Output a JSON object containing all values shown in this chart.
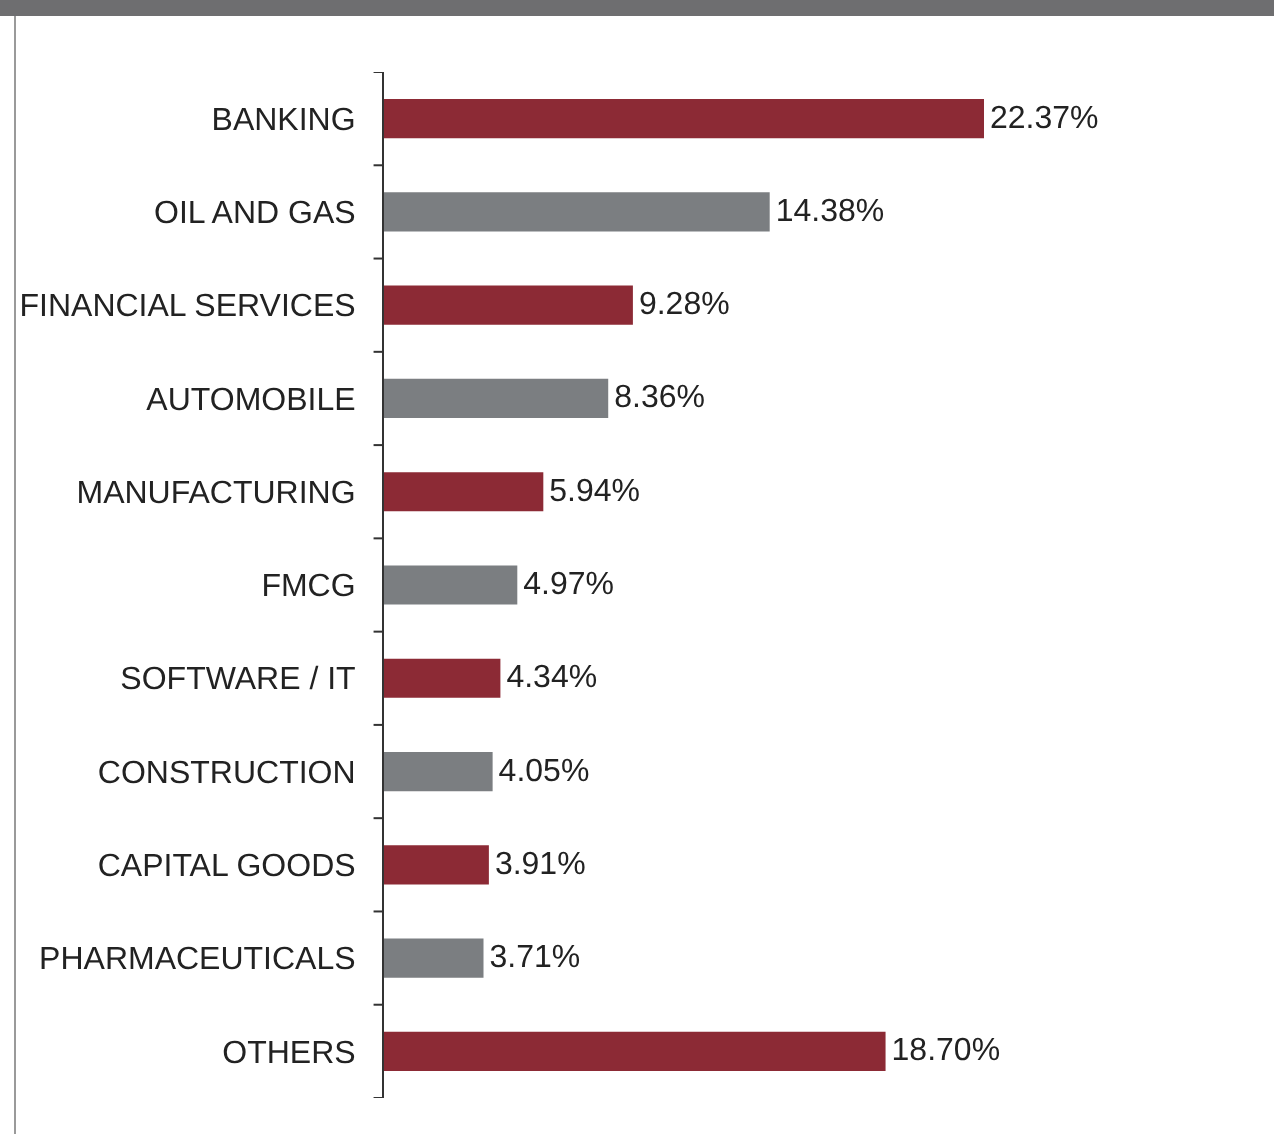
{
  "chart_data": {
    "type": "bar",
    "orientation": "horizontal",
    "categories": [
      "BANKING",
      "OIL AND GAS",
      "FINANCIAL SERVICES",
      "AUTOMOBILE",
      "MANUFACTURING",
      "FMCG",
      "SOFTWARE / IT",
      "CONSTRUCTION",
      "CAPITAL GOODS",
      "PHARMACEUTICALS",
      "OTHERS"
    ],
    "values": [
      22.37,
      14.38,
      9.28,
      8.36,
      5.94,
      4.97,
      4.34,
      4.05,
      3.91,
      3.71,
      18.7
    ],
    "value_labels": [
      "22.37%",
      "14.38%",
      "9.28%",
      "8.36%",
      "5.94%",
      "4.97%",
      "4.34%",
      "4.05%",
      "3.91%",
      "3.71%",
      "18.70%"
    ],
    "colors": [
      "#8c2a35",
      "#7b7e81",
      "#8c2a35",
      "#7b7e81",
      "#8c2a35",
      "#7b7e81",
      "#8c2a35",
      "#7b7e81",
      "#8c2a35",
      "#7b7e81",
      "#8c2a35"
    ]
  }
}
